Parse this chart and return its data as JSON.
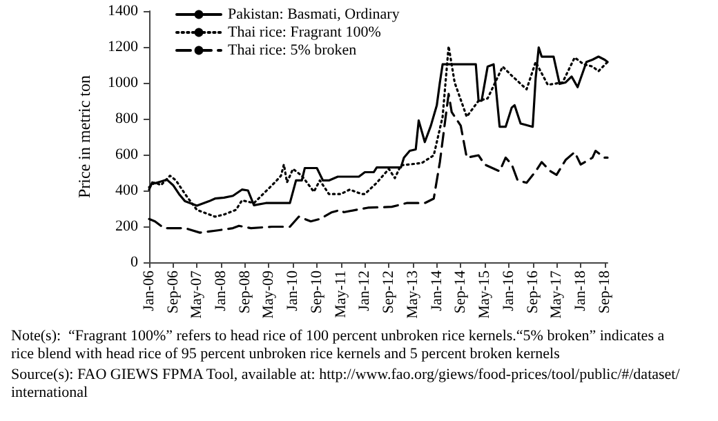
{
  "chart_data": {
    "type": "line",
    "ylabel": "Price in metric ton",
    "xlim": [
      "2006-01",
      "2018-10"
    ],
    "xticks": [
      {
        "value": "2006-01",
        "label": "Jan-06"
      },
      {
        "value": "2006-09",
        "label": "Sep-06"
      },
      {
        "value": "2007-05",
        "label": "May-07"
      },
      {
        "value": "2008-01",
        "label": "Jan-08"
      },
      {
        "value": "2008-09",
        "label": "Sep-08"
      },
      {
        "value": "2009-05",
        "label": "May-09"
      },
      {
        "value": "2010-01",
        "label": "Jan-10"
      },
      {
        "value": "2010-09",
        "label": "Sep-10"
      },
      {
        "value": "2011-05",
        "label": "May-11"
      },
      {
        "value": "2012-01",
        "label": "Jan-12"
      },
      {
        "value": "2012-09",
        "label": "Sep-12"
      },
      {
        "value": "2013-05",
        "label": "May-13"
      },
      {
        "value": "2014-01",
        "label": "Jan-14"
      },
      {
        "value": "2014-09",
        "label": "Sep-14"
      },
      {
        "value": "2015-05",
        "label": "May-15"
      },
      {
        "value": "2016-01",
        "label": "Jan-16"
      },
      {
        "value": "2016-09",
        "label": "Sep-16"
      },
      {
        "value": "2017-05",
        "label": "May-17"
      },
      {
        "value": "2018-01",
        "label": "Jan-18"
      },
      {
        "value": "2018-09",
        "label": "Sep-18"
      }
    ],
    "ylim": [
      0,
      1400
    ],
    "yticks": [
      0,
      200,
      400,
      600,
      800,
      1000,
      1200,
      1400
    ],
    "grid": false,
    "legend": "top left",
    "marker": "none",
    "series": [
      {
        "name": "Pakistan: Basmati, Ordinary",
        "color": "#000000",
        "line_style": "solid",
        "x": [
          "2006-01",
          "2006-02",
          "2006-03",
          "2006-05",
          "2006-07",
          "2006-09",
          "2006-11",
          "2007-01",
          "2007-05",
          "2007-09",
          "2007-11",
          "2008-02",
          "2008-05",
          "2008-08",
          "2008-10",
          "2008-12",
          "2009-04",
          "2009-09",
          "2009-12",
          "2010-02",
          "2010-04",
          "2010-05",
          "2010-09",
          "2010-11",
          "2011-01",
          "2011-04",
          "2011-11",
          "2012-01",
          "2012-04",
          "2012-05",
          "2012-06",
          "2013-01",
          "2013-02",
          "2013-04",
          "2013-06",
          "2013-07",
          "2013-09",
          "2013-11",
          "2014-01",
          "2014-02",
          "2014-03",
          "2015-02",
          "2015-03",
          "2015-04",
          "2015-06",
          "2015-08",
          "2015-10",
          "2015-12",
          "2016-02",
          "2016-03",
          "2016-05",
          "2016-09",
          "2016-10",
          "2016-11",
          "2016-12",
          "2017-04",
          "2017-06",
          "2017-08",
          "2017-10",
          "2017-12",
          "2018-03",
          "2018-05",
          "2018-07",
          "2018-09",
          "2018-10"
        ],
        "values": [
          405,
          445,
          440,
          450,
          460,
          430,
          380,
          340,
          315,
          340,
          355,
          360,
          370,
          405,
          400,
          318,
          330,
          330,
          330,
          456,
          456,
          525,
          525,
          456,
          456,
          477,
          477,
          502,
          502,
          528,
          528,
          528,
          583,
          621,
          629,
          790,
          670,
          760,
          875,
          1002,
          1103,
          1103,
          900,
          900,
          1090,
          1103,
          755,
          755,
          862,
          875,
          773,
          755,
          1027,
          1197,
          1146,
          1146,
          994,
          1002,
          1035,
          976,
          1116,
          1129,
          1146,
          1129,
          1116
        ]
      },
      {
        "name": "Thai rice: Fragrant 100%",
        "color": "#000000",
        "line_style": "dotted",
        "x": [
          "2006-01",
          "2006-03",
          "2006-05",
          "2006-08",
          "2006-10",
          "2007-01",
          "2007-05",
          "2007-11",
          "2008-02",
          "2008-06",
          "2008-08",
          "2008-12",
          "2009-07",
          "2009-09",
          "2009-10",
          "2009-11",
          "2010-01",
          "2010-04",
          "2010-08",
          "2010-10",
          "2011-01",
          "2011-05",
          "2011-08",
          "2011-12",
          "2012-01",
          "2012-05",
          "2012-09",
          "2012-11",
          "2013-01",
          "2013-08",
          "2013-12",
          "2014-03",
          "2014-05",
          "2014-07",
          "2014-11",
          "2015-03",
          "2015-06",
          "2015-11",
          "2016-02",
          "2016-07",
          "2016-10",
          "2017-02",
          "2017-07",
          "2017-11",
          "2018-02",
          "2018-05",
          "2018-07",
          "2018-10"
        ],
        "values": [
          418,
          445,
          430,
          482,
          456,
          380,
          292,
          254,
          266,
          292,
          345,
          330,
          445,
          482,
          545,
          445,
          520,
          482,
          393,
          456,
          380,
          380,
          405,
          380,
          380,
          443,
          520,
          469,
          540,
          553,
          596,
          811,
          1204,
          1002,
          811,
          900,
          913,
          1090,
          1040,
          964,
          1116,
          989,
          1002,
          1141,
          1103,
          1091,
          1065,
          1116
        ]
      },
      {
        "name": "Thai rice: 5% broken",
        "color": "#000000",
        "line_style": "dashed",
        "x": [
          "2006-01",
          "2006-03",
          "2006-06",
          "2007-01",
          "2007-06",
          "2007-12",
          "2008-05",
          "2008-07",
          "2008-11",
          "2009-06",
          "2009-12",
          "2010-03",
          "2010-07",
          "2010-10",
          "2011-02",
          "2011-05",
          "2011-06",
          "2012-02",
          "2012-10",
          "2013-03",
          "2013-09",
          "2013-12",
          "2014-02",
          "2014-04",
          "2014-05",
          "2014-06",
          "2014-09",
          "2014-11",
          "2015-03",
          "2015-05",
          "2015-10",
          "2015-12",
          "2016-02",
          "2016-04",
          "2016-07",
          "2016-10",
          "2016-12",
          "2017-03",
          "2017-05",
          "2017-08",
          "2017-11",
          "2018-01",
          "2018-05",
          "2018-06",
          "2018-09",
          "2018-10"
        ],
        "values": [
          241,
          228,
          190,
          190,
          165,
          178,
          190,
          203,
          190,
          198,
          198,
          254,
          228,
          241,
          279,
          292,
          279,
          304,
          309,
          330,
          330,
          355,
          558,
          811,
          938,
          837,
          761,
          583,
          596,
          545,
          507,
          583,
          545,
          456,
          443,
          507,
          558,
          507,
          487,
          570,
          614,
          545,
          583,
          621,
          583,
          583
        ]
      }
    ],
    "annotations": [
      "Note(s):  “Fragrant 100%” refers to head rice of 100 percent unbroken rice kernels.“5% broken” indicates a rice blend with head rice of 95 percent unbroken rice kernels and 5 percent broken kernels",
      "Source(s): FAO GIEWS FPMA Tool, available at: http://www.fao.org/giews/food-prices/tool/public/#/dataset/international"
    ]
  }
}
